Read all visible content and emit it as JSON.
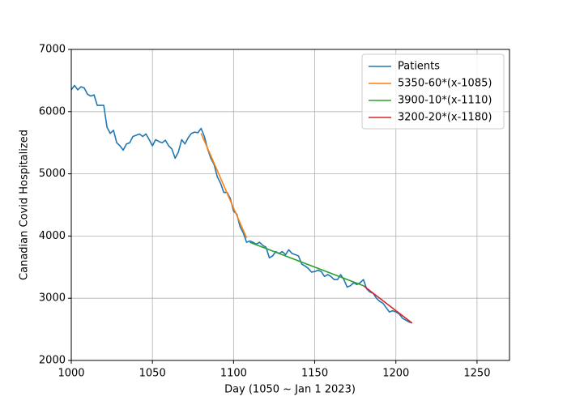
{
  "chart_data": {
    "type": "line",
    "xlabel": "Day (1050 ~ Jan 1 2023)",
    "ylabel": "Canadian Covid Hospitalized",
    "xlim": [
      1000,
      1270
    ],
    "xticks": [
      1000,
      1050,
      1100,
      1150,
      1200,
      1250
    ],
    "ylim": [
      2000,
      7000
    ],
    "yticks": [
      2000,
      3000,
      4000,
      5000,
      6000,
      7000
    ],
    "grid": true,
    "legend": "upper right",
    "series": [
      {
        "name": "Patients",
        "color": "#1f77b4",
        "x": [
          1000,
          1002,
          1004,
          1006,
          1008,
          1010,
          1012,
          1014,
          1016,
          1018,
          1020,
          1022,
          1024,
          1026,
          1028,
          1030,
          1032,
          1034,
          1036,
          1038,
          1040,
          1042,
          1044,
          1046,
          1048,
          1050,
          1052,
          1054,
          1056,
          1058,
          1060,
          1062,
          1064,
          1066,
          1068,
          1070,
          1072,
          1074,
          1076,
          1078,
          1080,
          1082,
          1084,
          1086,
          1088,
          1090,
          1092,
          1094,
          1096,
          1098,
          1100,
          1102,
          1104,
          1106,
          1108,
          1110,
          1112,
          1114,
          1116,
          1118,
          1120,
          1122,
          1124,
          1126,
          1128,
          1130,
          1132,
          1134,
          1136,
          1138,
          1140,
          1142,
          1144,
          1146,
          1148,
          1150,
          1152,
          1154,
          1156,
          1158,
          1160,
          1162,
          1164,
          1166,
          1168,
          1170,
          1172,
          1174,
          1176,
          1178,
          1180,
          1182,
          1184,
          1186,
          1188,
          1190,
          1192,
          1194,
          1196,
          1198,
          1200,
          1202,
          1204,
          1206,
          1208,
          1210
        ],
        "values": [
          6350,
          6420,
          6350,
          6400,
          6380,
          6280,
          6250,
          6270,
          6100,
          6100,
          6100,
          5750,
          5650,
          5700,
          5500,
          5450,
          5380,
          5480,
          5500,
          5600,
          5620,
          5640,
          5600,
          5640,
          5550,
          5450,
          5550,
          5520,
          5500,
          5540,
          5450,
          5400,
          5250,
          5350,
          5550,
          5480,
          5580,
          5650,
          5670,
          5660,
          5730,
          5600,
          5400,
          5250,
          5150,
          4950,
          4850,
          4700,
          4700,
          4600,
          4400,
          4350,
          4150,
          4050,
          3900,
          3920,
          3900,
          3870,
          3900,
          3850,
          3820,
          3650,
          3680,
          3750,
          3720,
          3750,
          3700,
          3780,
          3720,
          3700,
          3680,
          3550,
          3520,
          3480,
          3420,
          3430,
          3450,
          3430,
          3350,
          3380,
          3350,
          3300,
          3300,
          3380,
          3300,
          3180,
          3200,
          3250,
          3220,
          3250,
          3300,
          3150,
          3100,
          3080,
          3000,
          2950,
          2920,
          2850,
          2780,
          2800,
          2780,
          2750,
          2680,
          2650,
          2620,
          2600
        ]
      },
      {
        "name": "5350-60*(x-1085)",
        "color": "#ff7f0e",
        "x": [
          1080,
          1108
        ],
        "values": [
          5650,
          3970
        ]
      },
      {
        "name": "3900-10*(x-1110)",
        "color": "#2ca02c",
        "x": [
          1110,
          1180
        ],
        "values": [
          3900,
          3200
        ]
      },
      {
        "name": "3200-20*(x-1180)",
        "color": "#d62728",
        "x": [
          1180,
          1210
        ],
        "values": [
          3200,
          2600
        ]
      }
    ]
  }
}
